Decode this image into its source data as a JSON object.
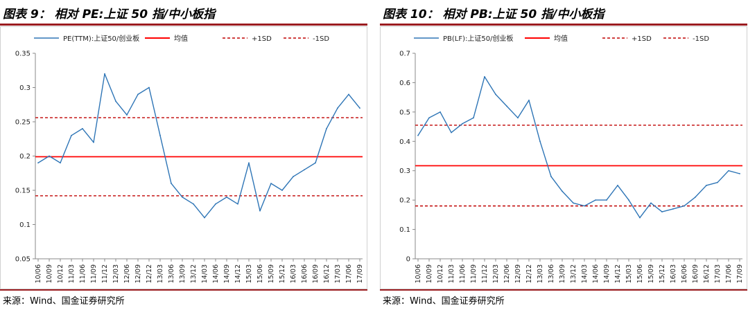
{
  "figures": [
    {
      "title": "图表 9： 相对 PE:上证 50 指/中小板指",
      "source": "来源：Wind、国金证券研究所"
    },
    {
      "title": "图表 10： 相对 PB:上证 50 指/中小板指",
      "source": "来源：Wind、国金证券研究所"
    }
  ],
  "colors": {
    "series": "#2e75b6",
    "mean": "#ff0000",
    "sd": "#c00000",
    "accent_rule": "#9b1c20",
    "axis": "#888888"
  },
  "chart_data": [
    {
      "type": "line",
      "title": "",
      "xlabel": "",
      "ylabel": "",
      "ylim": [
        0.05,
        0.35
      ],
      "yticks": [
        "0.05",
        "0.1",
        "0.15",
        "0.2",
        "0.25",
        "0.3",
        "0.35"
      ],
      "x_ticks": [
        "10/06",
        "10/09",
        "10/12",
        "11/03",
        "11/06",
        "11/09",
        "11/12",
        "12/03",
        "12/06",
        "12/09",
        "12/12",
        "13/03",
        "13/06",
        "13/09",
        "13/12",
        "14/03",
        "14/06",
        "14/09",
        "14/12",
        "15/03",
        "15/06",
        "15/09",
        "15/12",
        "16/03",
        "16/06",
        "16/09",
        "16/12",
        "17/03",
        "17/06",
        "17/09"
      ],
      "legend": {
        "position": "top",
        "entries": [
          "PE(TTM):上证50/创业板",
          "均值",
          "+1SD",
          "-1SD"
        ]
      },
      "series": [
        {
          "name": "PE(TTM):上证50/创业板",
          "x": [
            "10/06",
            "10/09",
            "10/12",
            "11/03",
            "11/06",
            "11/09",
            "11/12",
            "12/03",
            "12/06",
            "12/09",
            "12/12",
            "13/03",
            "13/06",
            "13/09",
            "13/12",
            "14/03",
            "14/06",
            "14/09",
            "14/12",
            "15/03",
            "15/06",
            "15/09",
            "15/12",
            "16/03",
            "16/06",
            "16/09",
            "16/12",
            "17/03",
            "17/06",
            "17/09"
          ],
          "values": [
            0.19,
            0.2,
            0.19,
            0.23,
            0.24,
            0.22,
            0.32,
            0.28,
            0.26,
            0.29,
            0.3,
            0.23,
            0.16,
            0.14,
            0.13,
            0.11,
            0.13,
            0.14,
            0.13,
            0.19,
            0.12,
            0.16,
            0.15,
            0.17,
            0.18,
            0.19,
            0.24,
            0.27,
            0.29,
            0.27
          ]
        }
      ],
      "reference_lines": {
        "mean": 0.199,
        "plus_1sd": 0.256,
        "minus_1sd": 0.142
      }
    },
    {
      "type": "line",
      "title": "",
      "xlabel": "",
      "ylabel": "",
      "ylim": [
        0,
        0.7
      ],
      "yticks": [
        "0",
        "0.1",
        "0.2",
        "0.3",
        "0.4",
        "0.5",
        "0.6",
        "0.7"
      ],
      "x_ticks": [
        "10/06",
        "10/09",
        "10/12",
        "11/03",
        "11/06",
        "11/09",
        "11/12",
        "12/03",
        "12/06",
        "12/09",
        "12/12",
        "13/03",
        "13/06",
        "13/09",
        "13/12",
        "14/03",
        "14/06",
        "14/09",
        "14/12",
        "15/03",
        "15/06",
        "15/09",
        "15/12",
        "16/03",
        "16/06",
        "16/09",
        "16/12",
        "17/03",
        "17/06",
        "17/09"
      ],
      "legend": {
        "position": "top",
        "entries": [
          "PB(LF):上证50/创业板",
          "均值",
          "+1SD",
          "-1SD"
        ]
      },
      "series": [
        {
          "name": "PB(LF):上证50/创业板",
          "x": [
            "10/06",
            "10/09",
            "10/12",
            "11/03",
            "11/06",
            "11/09",
            "11/12",
            "12/03",
            "12/06",
            "12/09",
            "12/12",
            "13/03",
            "13/06",
            "13/09",
            "13/12",
            "14/03",
            "14/06",
            "14/09",
            "14/12",
            "15/03",
            "15/06",
            "15/09",
            "15/12",
            "16/03",
            "16/06",
            "16/09",
            "16/12",
            "17/03",
            "17/06",
            "17/09"
          ],
          "values": [
            0.42,
            0.48,
            0.5,
            0.43,
            0.46,
            0.48,
            0.62,
            0.56,
            0.52,
            0.48,
            0.54,
            0.4,
            0.28,
            0.23,
            0.19,
            0.18,
            0.2,
            0.2,
            0.25,
            0.2,
            0.14,
            0.19,
            0.16,
            0.17,
            0.18,
            0.21,
            0.25,
            0.26,
            0.3,
            0.29
          ]
        }
      ],
      "reference_lines": {
        "mean": 0.317,
        "plus_1sd": 0.455,
        "minus_1sd": 0.18
      }
    }
  ]
}
